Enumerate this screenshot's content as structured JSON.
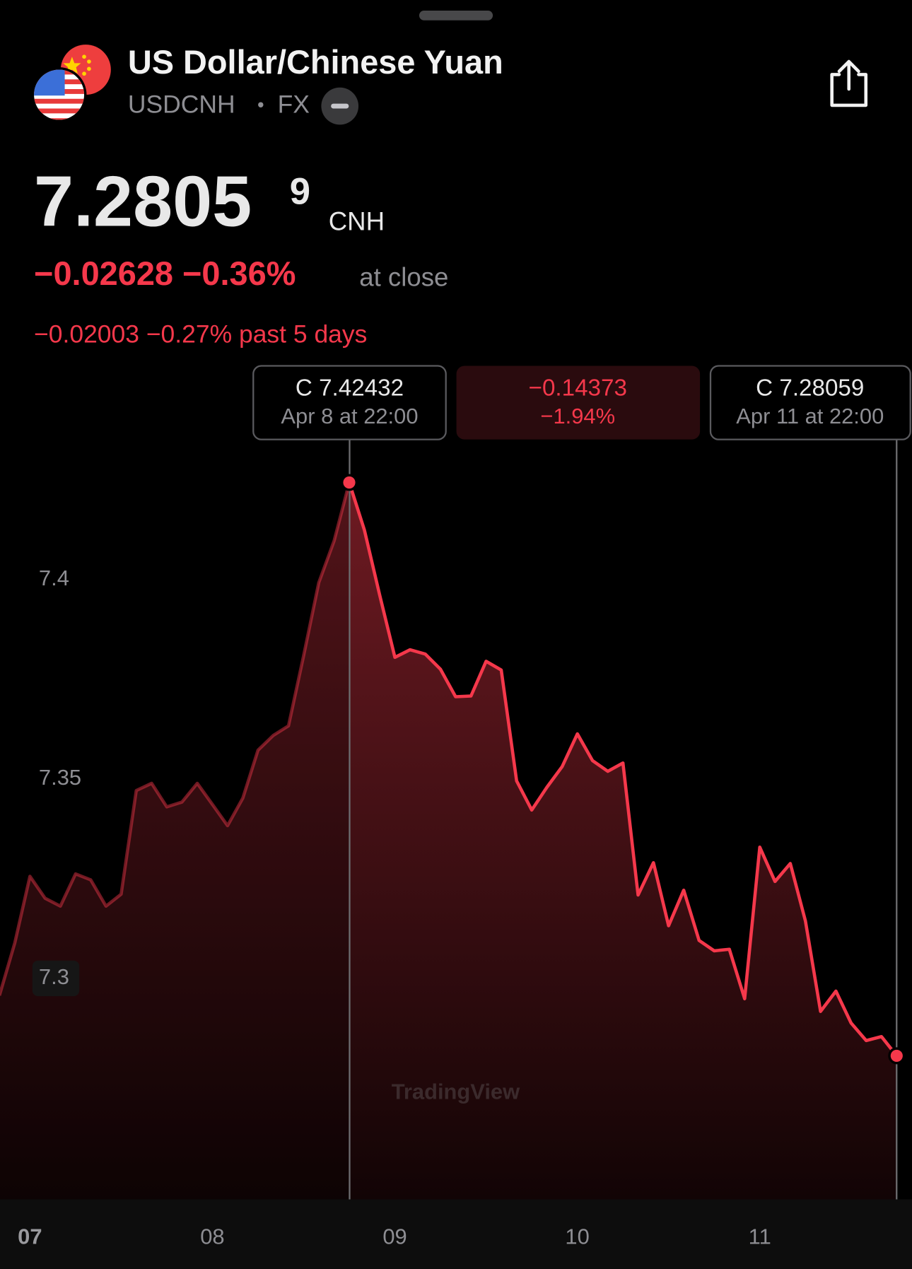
{
  "header": {
    "title": "US Dollar/Chinese Yuan",
    "symbol": "USDCNH",
    "separator": "•",
    "market": "FX",
    "price": "7.2805",
    "price_last_digit": "9",
    "currency": "CNH",
    "change": "−0.02628 −0.36%",
    "change_note": "at close",
    "period_change": "−0.02003 −0.27% past 5 days"
  },
  "tooltips": {
    "start": {
      "price": "C 7.42432",
      "time": "Apr 8 at 22:00"
    },
    "difference": {
      "change": "−0.14373",
      "percent": "−1.94%"
    },
    "end": {
      "price": "C 7.28059",
      "time": "Apr 11 at 22:00"
    }
  },
  "watermark": "TradingView",
  "chart_data": {
    "type": "area",
    "color": "#f5384b",
    "x": [
      6.833,
      6.917,
      7,
      7.083,
      7.167,
      7.25,
      7.333,
      7.417,
      7.5,
      7.583,
      7.667,
      7.75,
      7.833,
      7.917,
      8,
      8.083,
      8.167,
      8.25,
      8.333,
      8.417,
      8.5,
      8.583,
      8.667,
      8.75,
      8.833,
      8.917,
      9,
      9.083,
      9.167,
      9.25,
      9.333,
      9.417,
      9.5,
      9.583,
      9.667,
      9.75,
      9.833,
      9.917,
      10,
      10.083,
      10.167,
      10.25,
      10.333,
      10.417,
      10.5,
      10.583,
      10.667,
      10.75,
      10.833,
      10.917,
      11,
      11.083,
      11.167,
      11.25,
      11.333,
      11.417,
      11.5,
      11.583,
      11.667,
      11.75
    ],
    "values": [
      7.2957,
      7.3089,
      7.3256,
      7.3201,
      7.3181,
      7.3262,
      7.3247,
      7.3181,
      7.3211,
      7.3471,
      7.3489,
      7.343,
      7.3442,
      7.3489,
      7.3436,
      7.3383,
      7.3452,
      7.3572,
      7.3609,
      7.3633,
      7.3809,
      7.3992,
      7.4097,
      7.42432,
      7.4124,
      7.3961,
      7.3805,
      7.3824,
      7.3813,
      7.3775,
      7.3706,
      7.3708,
      7.3795,
      7.3773,
      7.3495,
      7.3422,
      7.3479,
      7.3531,
      7.3613,
      7.3546,
      7.3519,
      7.354,
      7.3209,
      7.329,
      7.3132,
      7.3221,
      7.3095,
      7.3069,
      7.3073,
      7.2949,
      7.3329,
      7.3243,
      7.3288,
      7.3144,
      7.2917,
      7.2968,
      7.2888,
      7.2844,
      7.2854,
      7.28059
    ],
    "xlim": [
      6.836,
      11.834
    ],
    "ylim": [
      7.2446,
      7.4347
    ],
    "xticks": [
      {
        "value": 7,
        "label": "07"
      },
      {
        "value": 8,
        "label": "08"
      },
      {
        "value": 9,
        "label": "09"
      },
      {
        "value": 10,
        "label": "10"
      },
      {
        "value": 11,
        "label": "11"
      }
    ],
    "yticks": [
      7.3,
      7.35,
      7.4
    ]
  }
}
